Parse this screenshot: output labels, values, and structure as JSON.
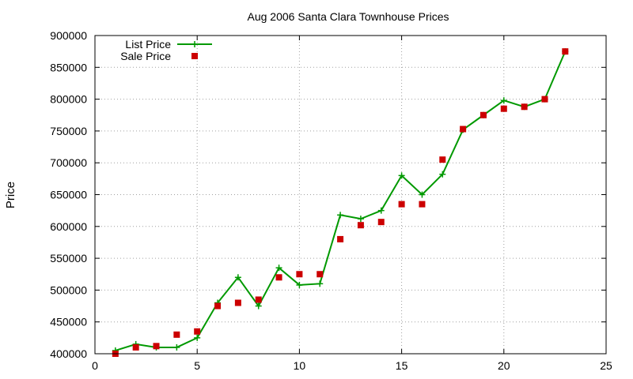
{
  "chart_data": {
    "type": "line",
    "title": "Aug 2006 Santa Clara Townhouse Prices",
    "xlabel": "",
    "ylabel": "Price",
    "xlim": [
      0,
      25
    ],
    "ylim": [
      400000,
      900000
    ],
    "xticks": [
      0,
      5,
      10,
      15,
      20,
      25
    ],
    "yticks": [
      400000,
      450000,
      500000,
      550000,
      600000,
      650000,
      700000,
      750000,
      800000,
      850000,
      900000
    ],
    "grid": true,
    "legend_position": "top-left",
    "series": [
      {
        "name": "List Price",
        "style": "line-with-plus-markers",
        "color": "#009900",
        "x": [
          1,
          2,
          3,
          4,
          5,
          6,
          7,
          8,
          9,
          10,
          11,
          12,
          13,
          14,
          15,
          16,
          17,
          18,
          19,
          20,
          21,
          22,
          23
        ],
        "y": [
          405000,
          415000,
          410000,
          410000,
          425000,
          480000,
          520000,
          475000,
          535000,
          508000,
          510000,
          618000,
          612000,
          625000,
          680000,
          650000,
          682000,
          752000,
          775000,
          798000,
          788000,
          800000,
          875000
        ]
      },
      {
        "name": "Sale Price",
        "style": "square-markers",
        "color": "#cc0000",
        "x": [
          1,
          2,
          3,
          4,
          5,
          6,
          7,
          8,
          9,
          10,
          11,
          12,
          13,
          14,
          15,
          16,
          17,
          18,
          19,
          20,
          21,
          22,
          23
        ],
        "y": [
          400000,
          410000,
          412000,
          430000,
          435000,
          475000,
          480000,
          485000,
          520000,
          525000,
          525000,
          580000,
          602000,
          607000,
          635000,
          635000,
          705000,
          753000,
          775000,
          785000,
          788000,
          800000,
          875000
        ]
      }
    ]
  }
}
